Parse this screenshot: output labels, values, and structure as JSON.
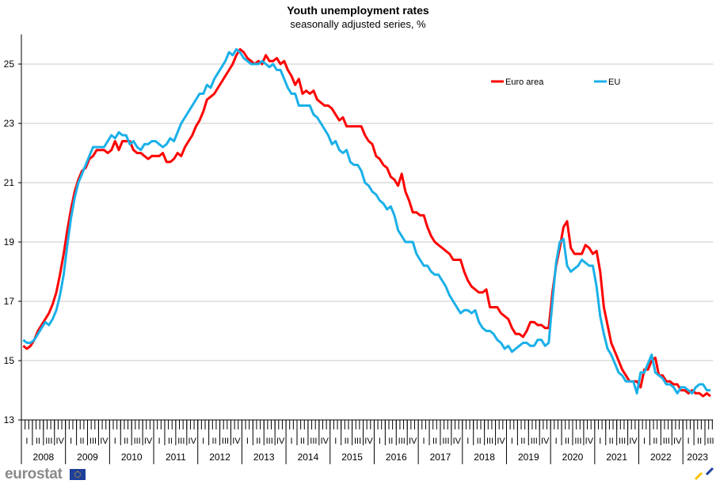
{
  "chart_data": {
    "type": "line",
    "title": "Youth unemployment rates",
    "subtitle": "seasonally adjusted series, %",
    "xlabel": "",
    "ylabel": "",
    "ylim": [
      13,
      26
    ],
    "yticks": [
      "13",
      "15",
      "17",
      "19",
      "21",
      "23",
      "25"
    ],
    "years": [
      "2008",
      "2009",
      "2010",
      "2011",
      "2012",
      "2013",
      "2014",
      "2015",
      "2016",
      "2017",
      "2018",
      "2019",
      "2020",
      "2021",
      "2022",
      "2023"
    ],
    "quarters": [
      "I",
      "II",
      "III",
      "IV"
    ],
    "x_start": "2008-01",
    "frequency": "monthly",
    "grid": true,
    "legend_position": "top-right",
    "series": [
      {
        "name": "Euro area",
        "color": "#ff0000",
        "values": [
          15.5,
          15.4,
          15.5,
          15.7,
          16.0,
          16.2,
          16.4,
          16.6,
          16.9,
          17.3,
          17.9,
          18.6,
          19.4,
          20.1,
          20.7,
          21.1,
          21.4,
          21.5,
          21.8,
          21.9,
          22.1,
          22.1,
          22.1,
          22.0,
          22.1,
          22.4,
          22.1,
          22.4,
          22.4,
          22.4,
          22.1,
          22.0,
          22.0,
          21.9,
          21.8,
          21.9,
          21.9,
          21.9,
          22.0,
          21.7,
          21.7,
          21.8,
          22.0,
          21.9,
          22.2,
          22.4,
          22.6,
          22.9,
          23.1,
          23.4,
          23.8,
          23.9,
          24.0,
          24.2,
          24.4,
          24.6,
          24.8,
          25.0,
          25.3,
          25.5,
          25.4,
          25.2,
          25.1,
          25.0,
          25.1,
          25.0,
          25.3,
          25.1,
          25.1,
          25.2,
          25.0,
          25.1,
          24.8,
          24.6,
          24.3,
          24.5,
          24.0,
          24.1,
          24.0,
          24.1,
          23.8,
          23.7,
          23.6,
          23.6,
          23.5,
          23.3,
          23.1,
          23.2,
          22.9,
          22.9,
          22.9,
          22.9,
          22.9,
          22.6,
          22.4,
          22.3,
          21.9,
          21.8,
          21.6,
          21.5,
          21.2,
          21.1,
          20.9,
          21.3,
          20.7,
          20.4,
          20.0,
          20.0,
          19.9,
          19.9,
          19.5,
          19.2,
          19.0,
          18.9,
          18.8,
          18.7,
          18.6,
          18.4,
          18.4,
          18.4,
          18.0,
          17.7,
          17.5,
          17.4,
          17.3,
          17.3,
          17.4,
          16.8,
          16.8,
          16.8,
          16.6,
          16.5,
          16.4,
          16.1,
          15.9,
          15.9,
          15.8,
          16.0,
          16.3,
          16.3,
          16.2,
          16.2,
          16.1,
          16.1,
          17.3,
          18.2,
          18.8,
          19.5,
          19.7,
          18.8,
          18.6,
          18.6,
          18.6,
          18.9,
          18.8,
          18.6,
          18.7,
          18.0,
          16.8,
          16.2,
          15.6,
          15.3,
          15.0,
          14.7,
          14.5,
          14.3,
          14.3,
          14.3,
          14.1,
          14.7,
          14.7,
          15.0,
          15.1,
          14.5,
          14.5,
          14.3,
          14.3,
          14.2,
          14.2,
          14.0,
          14.0,
          13.9,
          14.0,
          13.9,
          13.9,
          13.8,
          13.9,
          13.8
        ]
      },
      {
        "name": "EU",
        "color": "#1ab0e8",
        "values": [
          15.7,
          15.6,
          15.6,
          15.7,
          15.9,
          16.1,
          16.3,
          16.2,
          16.4,
          16.7,
          17.2,
          17.9,
          18.9,
          19.8,
          20.5,
          21.0,
          21.3,
          21.6,
          21.9,
          22.2,
          22.2,
          22.2,
          22.2,
          22.4,
          22.6,
          22.5,
          22.7,
          22.6,
          22.6,
          22.3,
          22.4,
          22.2,
          22.1,
          22.3,
          22.3,
          22.4,
          22.4,
          22.3,
          22.2,
          22.3,
          22.5,
          22.4,
          22.7,
          23.0,
          23.2,
          23.4,
          23.6,
          23.8,
          24.0,
          24.0,
          24.3,
          24.2,
          24.5,
          24.7,
          24.9,
          25.1,
          25.4,
          25.3,
          25.5,
          25.4,
          25.2,
          25.1,
          25.0,
          25.0,
          25.0,
          25.1,
          25.0,
          24.9,
          25.0,
          24.8,
          24.8,
          24.5,
          24.2,
          24.0,
          24.0,
          23.6,
          23.6,
          23.6,
          23.6,
          23.3,
          23.2,
          23.0,
          22.8,
          22.6,
          22.3,
          22.4,
          22.1,
          22.0,
          22.1,
          21.7,
          21.6,
          21.6,
          21.4,
          21.0,
          20.9,
          20.7,
          20.6,
          20.4,
          20.3,
          20.1,
          20.2,
          19.9,
          19.4,
          19.2,
          19.0,
          19.0,
          19.0,
          18.6,
          18.4,
          18.2,
          18.2,
          18.0,
          17.9,
          17.9,
          17.7,
          17.5,
          17.2,
          17.0,
          16.8,
          16.6,
          16.7,
          16.7,
          16.6,
          16.7,
          16.3,
          16.1,
          16.0,
          16.0,
          15.9,
          15.7,
          15.6,
          15.4,
          15.5,
          15.3,
          15.4,
          15.5,
          15.6,
          15.6,
          15.5,
          15.5,
          15.7,
          15.7,
          15.5,
          15.6,
          17.0,
          18.3,
          19.0,
          19.1,
          18.2,
          18.0,
          18.1,
          18.2,
          18.4,
          18.3,
          18.2,
          18.2,
          17.5,
          16.5,
          15.9,
          15.4,
          15.2,
          14.9,
          14.6,
          14.5,
          14.3,
          14.3,
          14.3,
          13.9,
          14.6,
          14.6,
          14.9,
          15.2,
          14.6,
          14.5,
          14.4,
          14.2,
          14.2,
          14.1,
          13.9,
          14.1,
          14.1,
          14.0,
          13.9,
          14.1,
          14.2,
          14.2,
          14.0,
          14.0
        ]
      }
    ]
  },
  "footer": {
    "logo_text": "eurostat"
  }
}
